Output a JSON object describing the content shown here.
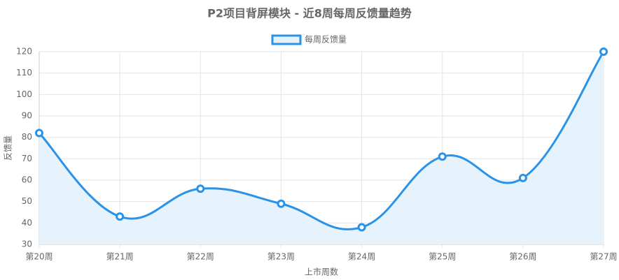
{
  "chart_data": {
    "type": "line",
    "title": "P2项目背屏模块 - 近8周每周反馈量趋势",
    "x_label": "上市周数",
    "y_label": "反馈量",
    "categories": [
      "第20周",
      "第21周",
      "第22周",
      "第23周",
      "第24周",
      "第25周",
      "第26周",
      "第27周"
    ],
    "series": [
      {
        "name": "每周反馈量",
        "color": "#2a93e8",
        "fill_color": "#e6f2fc",
        "values": [
          82,
          43,
          56,
          49,
          38,
          71,
          61,
          120
        ]
      }
    ],
    "ylim": [
      30,
      120
    ],
    "yticks": [
      30,
      40,
      50,
      60,
      70,
      80,
      90,
      100,
      110,
      120
    ],
    "grid": true,
    "smooth": true,
    "filled": true,
    "legend": "top"
  }
}
